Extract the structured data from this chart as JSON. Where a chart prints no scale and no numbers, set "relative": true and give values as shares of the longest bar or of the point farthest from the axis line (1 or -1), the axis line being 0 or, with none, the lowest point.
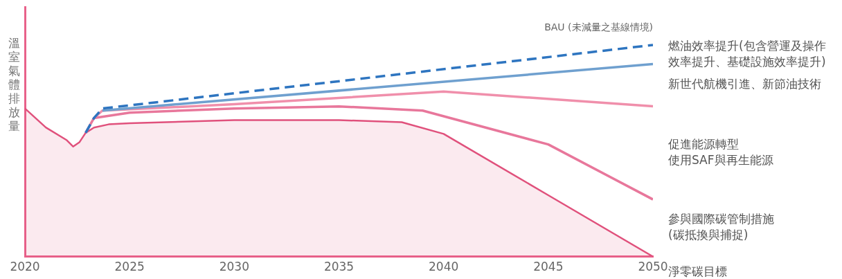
{
  "chart_data": {
    "type": "line",
    "relative": true,
    "ylabel": "溫室氣體排放量",
    "xlim": [
      2020,
      2050
    ],
    "xticks": [
      2020,
      2025,
      2030,
      2035,
      2040,
      2045,
      2050
    ],
    "grid": false,
    "legend": false,
    "marker": "none",
    "tick_labels": "x",
    "series": [
      {
        "type": "area",
        "color": "#e0517c",
        "x": [
          2020,
          2021,
          2022,
          2022.3,
          2022.6,
          2022.9,
          2023.3,
          2024,
          2025,
          2030,
          2035,
          2038,
          2040,
          2045,
          2050
        ],
        "values": [
          0.7,
          0.61,
          0.55,
          0.52,
          0.54,
          0.585,
          0.61,
          0.625,
          0.63,
          0.645,
          0.645,
          0.635,
          0.58,
          0.29,
          0
        ]
      },
      {
        "color": "#e8779b",
        "x": [
          2022.9,
          2023.3,
          2025,
          2030,
          2035,
          2039,
          2045,
          2050
        ],
        "values": [
          0.585,
          0.655,
          0.68,
          0.7,
          0.71,
          0.69,
          0.53,
          0.27
        ]
      },
      {
        "color": "#f08fab",
        "x": [
          2023.3,
          2023.7,
          2030,
          2040,
          2050
        ],
        "values": [
          0.655,
          0.69,
          0.72,
          0.78,
          0.71
        ]
      },
      {
        "color": "#6fa0cf",
        "x": [
          2023.7,
          2050
        ],
        "values": [
          0.69,
          0.91
        ]
      },
      {
        "name": "BAU (未減量之基線情境)",
        "color": "#2e75c0",
        "line_style": "dashed",
        "x": [
          2022.9,
          2023.3,
          2023.7,
          2050
        ],
        "values": [
          0.585,
          0.655,
          0.7,
          1.0
        ]
      }
    ],
    "annotations": [
      "燃油效率提升(包含營運及操作效率提升、基礎設施效率提升)",
      "新世代航機引進、新節油技術",
      "促進能源轉型",
      "使用SAF與再生能源",
      "參與國際碳管制措施",
      "(碳抵換與捕捉)",
      "淨零碳目標"
    ]
  }
}
